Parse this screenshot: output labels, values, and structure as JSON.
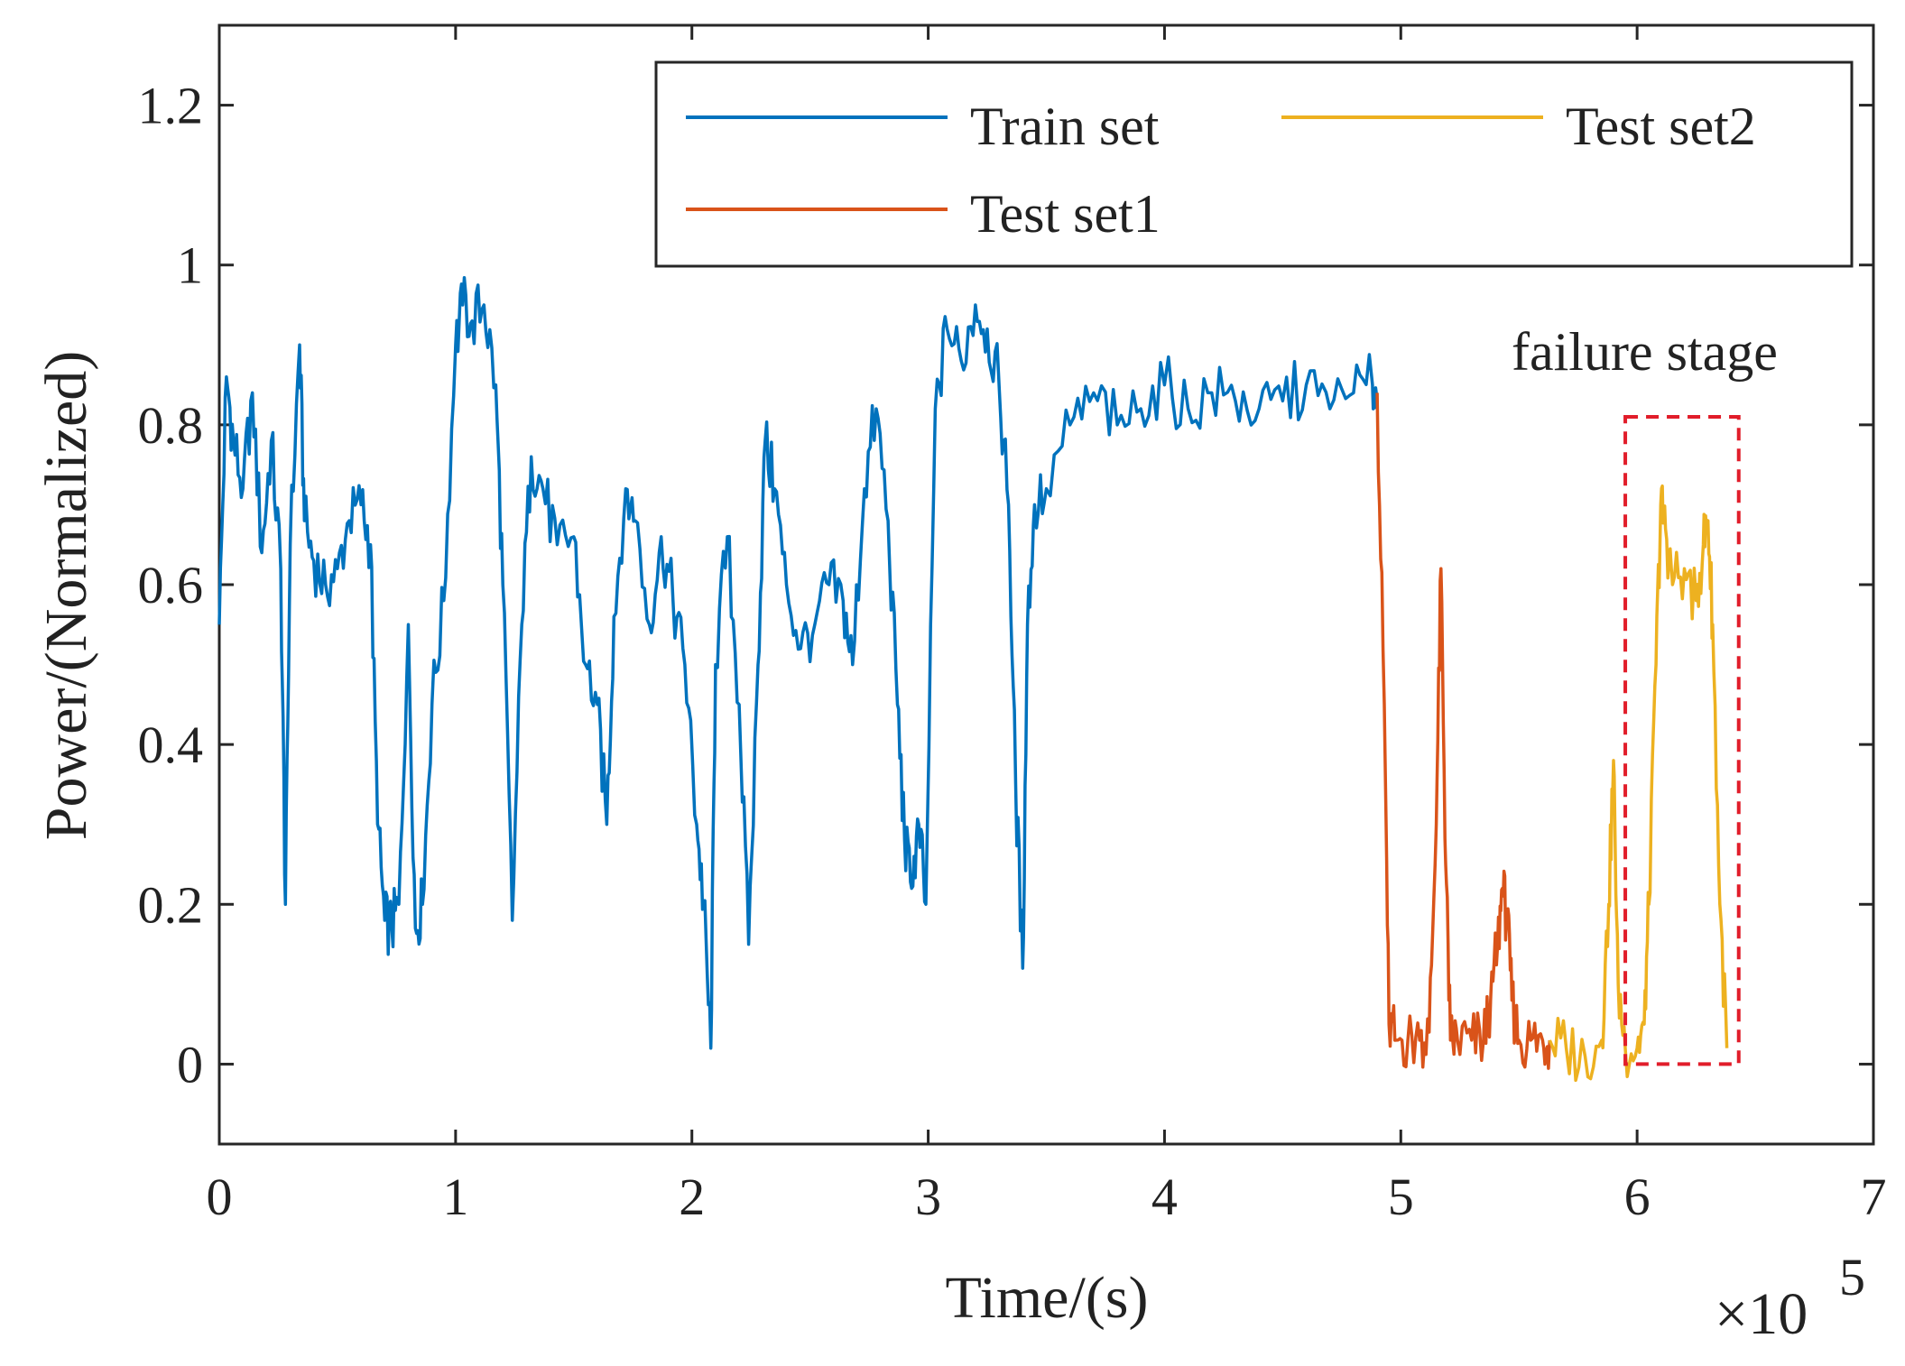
{
  "chart_data": {
    "type": "line",
    "title": "",
    "xlabel": "Time/(s)",
    "ylabel": "Power/(Normalized)",
    "x_multiplier_label": "×10",
    "x_multiplier_exp": "5",
    "xlim": [
      0,
      7
    ],
    "ylim": [
      -0.1,
      1.3
    ],
    "xticks": [
      0,
      1,
      2,
      3,
      4,
      5,
      6,
      7
    ],
    "xtick_labels": [
      "0",
      "1",
      "2",
      "3",
      "4",
      "5",
      "6",
      "7"
    ],
    "yticks": [
      0,
      0.2,
      0.4,
      0.6,
      0.8,
      1,
      1.2
    ],
    "ytick_labels": [
      "0",
      "0.2",
      "0.4",
      "0.6",
      "0.8",
      "1",
      "1.2"
    ],
    "legend_position": "top-right",
    "series": [
      {
        "name": "Train set",
        "color": "#0072BD",
        "x": [
          0,
          0.03,
          0.06,
          0.1,
          0.14,
          0.18,
          0.22,
          0.26,
          0.28,
          0.3,
          0.34,
          0.36,
          0.4,
          0.45,
          0.5,
          0.55,
          0.6,
          0.64,
          0.67,
          0.7,
          0.73,
          0.76,
          0.8,
          0.83,
          0.86,
          0.9,
          0.95,
          1.0,
          1.03,
          1.07,
          1.12,
          1.17,
          1.2,
          1.24,
          1.28,
          1.32,
          1.37,
          1.43,
          1.5,
          1.55,
          1.6,
          1.64,
          1.67,
          1.72,
          1.76,
          1.82,
          1.87,
          1.92,
          1.97,
          2.02,
          2.05,
          2.08,
          2.1,
          2.15,
          2.2,
          2.24,
          2.28,
          2.31,
          2.35,
          2.4,
          2.46,
          2.52,
          2.58,
          2.64,
          2.68,
          2.73,
          2.78,
          2.83,
          2.87,
          2.9,
          2.93,
          2.96,
          2.99,
          3.03,
          3.08,
          3.14,
          3.2,
          3.25,
          3.3,
          3.34,
          3.37,
          3.4,
          3.42,
          3.45,
          3.5,
          3.6,
          3.7,
          3.8,
          3.9,
          4.0,
          4.1,
          4.2,
          4.3,
          4.4,
          4.5,
          4.6,
          4.7,
          4.8,
          4.88,
          4.9
        ],
        "y": [
          0.55,
          0.86,
          0.78,
          0.72,
          0.84,
          0.64,
          0.78,
          0.62,
          0.2,
          0.65,
          0.9,
          0.68,
          0.63,
          0.6,
          0.62,
          0.68,
          0.7,
          0.65,
          0.3,
          0.18,
          0.17,
          0.2,
          0.55,
          0.17,
          0.2,
          0.45,
          0.58,
          0.9,
          0.95,
          0.93,
          0.95,
          0.85,
          0.6,
          0.18,
          0.55,
          0.76,
          0.72,
          0.65,
          0.66,
          0.5,
          0.45,
          0.3,
          0.56,
          0.72,
          0.68,
          0.55,
          0.66,
          0.58,
          0.5,
          0.3,
          0.2,
          0.02,
          0.5,
          0.66,
          0.45,
          0.15,
          0.5,
          0.78,
          0.72,
          0.6,
          0.52,
          0.55,
          0.6,
          0.58,
          0.5,
          0.72,
          0.82,
          0.68,
          0.45,
          0.28,
          0.22,
          0.3,
          0.2,
          0.82,
          0.92,
          0.88,
          0.95,
          0.92,
          0.85,
          0.7,
          0.35,
          0.12,
          0.55,
          0.7,
          0.72,
          0.8,
          0.84,
          0.8,
          0.82,
          0.85,
          0.82,
          0.84,
          0.83,
          0.82,
          0.83,
          0.85,
          0.82,
          0.84,
          0.85,
          0.84
        ]
      },
      {
        "name": "Test set1",
        "color": "#D95319",
        "x": [
          4.9,
          4.93,
          4.95,
          4.98,
          5.03,
          5.08,
          5.12,
          5.15,
          5.17,
          5.19,
          5.21,
          5.24,
          5.3,
          5.35,
          5.38,
          5.41,
          5.43,
          5.45,
          5.47,
          5.5,
          5.55,
          5.6,
          5.63
        ],
        "y": [
          0.84,
          0.45,
          0.05,
          0.03,
          0.03,
          0.03,
          0.04,
          0.3,
          0.62,
          0.25,
          0.03,
          0.03,
          0.03,
          0.03,
          0.08,
          0.15,
          0.22,
          0.18,
          0.08,
          0.03,
          0.03,
          0.03,
          0.03
        ]
      },
      {
        "name": "Test set2",
        "color": "#EDB120",
        "x": [
          5.63,
          5.7,
          5.78,
          5.85,
          5.88,
          5.9,
          5.92,
          5.95,
          6.0,
          6.03,
          6.05,
          6.08,
          6.1,
          6.12,
          6.15,
          6.2,
          6.25,
          6.28,
          6.3,
          6.32,
          6.35,
          6.38
        ],
        "y": [
          0.03,
          0.02,
          0.01,
          0.03,
          0.2,
          0.38,
          0.1,
          0.02,
          0.02,
          0.05,
          0.2,
          0.5,
          0.7,
          0.67,
          0.6,
          0.62,
          0.58,
          0.65,
          0.68,
          0.55,
          0.2,
          0.02
        ]
      }
    ],
    "annotations": [
      {
        "text": "failure stage",
        "x": 6.1,
        "y": 0.9
      }
    ],
    "highlight_box": {
      "x0": 5.95,
      "x1": 6.43,
      "y0": 0.0,
      "y1": 0.81,
      "color": "#e11d2a",
      "style": "dashed"
    }
  }
}
